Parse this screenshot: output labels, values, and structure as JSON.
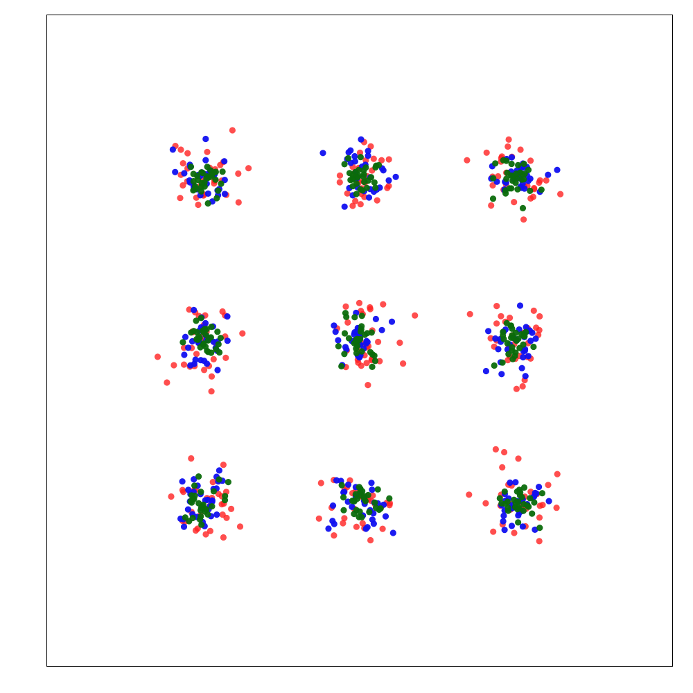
{
  "chart_data": {
    "type": "scatter",
    "title": "",
    "xlabel": "",
    "ylabel": "",
    "xlim": [
      -2,
      2
    ],
    "ylim": [
      -2,
      2
    ],
    "grid": false,
    "ticks_visible": false,
    "cluster_centers": [
      [
        -1,
        1
      ],
      [
        0,
        1
      ],
      [
        1,
        1
      ],
      [
        -1,
        0
      ],
      [
        0,
        0
      ],
      [
        1,
        0
      ],
      [
        -1,
        -1
      ],
      [
        0,
        -1
      ],
      [
        1,
        -1
      ]
    ],
    "series": [
      {
        "color": "#ff2222",
        "opacity": 0.8,
        "points_per_cluster": 30,
        "spread": 0.12
      },
      {
        "color": "#1010f0",
        "opacity": 0.95,
        "points_per_cluster": 30,
        "spread": 0.09
      },
      {
        "color": "#0b6b0b",
        "opacity": 0.95,
        "points_per_cluster": 30,
        "spread": 0.065
      }
    ]
  }
}
